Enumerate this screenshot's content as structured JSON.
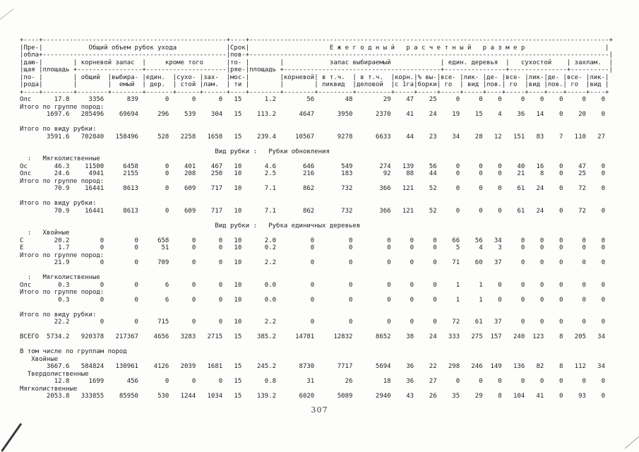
{
  "page": {
    "number": "307"
  },
  "table": {
    "header_lines": [
      "+----+------------------------------------------------+----+----------------------------------------------------------------------------------------------+",
      "|Пре-|            Общий объем рубок ухода             |Срок|                     Е ж е г о д н ы й   р а с ч е т н ы й   р а з м е р                     |",
      "|обла+------------------------------------------------|пов-+----------------------------------------------------------------------------------------------|",
      "|даю-|        | корневой запас  |     кроме того      |то- |        |            запас выбираемый             | един. деревья  |   сухостой    | захлам.  |",
      "|щая |площадь +-----------------+---------------------|ряе-|площадь +-----------------------------------------+----------------+---------------+----------|",
      "|по- |        | общий  |выбира- |един.  |сухо- |зах-  |мос-|        |корневой| в т.ч.  | в т.ч.  |корн.|% вы-|все- |лик- |де- |все- |лик-|де- |все- |лик-|",
      "|рода|        |        |  емый  | дер.  | стой |лам.  | ти |        |        | ликвид  |деловой  |с 1га|борки| го  | вид |лов.| го  |вид |лов.| го  |вид |",
      "+----+--------+--------+--------+-------+------+------+----+--------+--------+---------+---------+-----+-----+-----+-----+----+-----+----+----+-----+----+"
    ],
    "body_lines": [
      {
        "type": "row",
        "name": "Олс",
        "values": [
          "17.8",
          "3356",
          "839",
          "0",
          "0",
          "0",
          "15",
          "1.2",
          "56",
          "48",
          "29",
          "47",
          "25",
          "0",
          "0",
          "0",
          "0",
          "0",
          "0",
          "0",
          "0"
        ]
      },
      {
        "type": "label",
        "col": 0,
        "text": "Итого по группе пород:"
      },
      {
        "type": "values",
        "values": [
          "1697.6",
          "285496",
          "69694",
          "296",
          "539",
          "304",
          "15",
          "113.2",
          "4647",
          "3950",
          "2370",
          "41",
          "24",
          "19",
          "15",
          "4",
          "36",
          "14",
          "0",
          "20",
          "0"
        ]
      },
      {
        "type": "blank"
      },
      {
        "type": "label",
        "col": 0,
        "text": "Итого по виду рубки:"
      },
      {
        "type": "values",
        "values": [
          "3591.6",
          "702840",
          "158496",
          "528",
          "2258",
          "1658",
          "15",
          "239.4",
          "10567",
          "9278",
          "6633",
          "44",
          "23",
          "34",
          "28",
          "12",
          "151",
          "83",
          "7",
          "110",
          "27"
        ]
      },
      {
        "type": "blank"
      },
      {
        "type": "caption",
        "text": "Вид рубки :",
        "value": "Рубки обновления"
      },
      {
        "type": "label",
        "col": 2,
        "text": ":   Мягколиственные"
      },
      {
        "type": "row",
        "name": "Ос",
        "values": [
          "46.3",
          "11500",
          "6458",
          "0",
          "401",
          "467",
          "10",
          "4.6",
          "646",
          "549",
          "274",
          "139",
          "56",
          "0",
          "0",
          "0",
          "40",
          "16",
          "0",
          "47",
          "0"
        ]
      },
      {
        "type": "row",
        "name": "Олс",
        "values": [
          "24.6",
          "4941",
          "2155",
          "0",
          "208",
          "250",
          "10",
          "2.5",
          "216",
          "183",
          "92",
          "88",
          "44",
          "0",
          "0",
          "0",
          "21",
          "8",
          "0",
          "25",
          "0"
        ]
      },
      {
        "type": "label",
        "col": 0,
        "text": "Итого по группе пород:"
      },
      {
        "type": "values",
        "values": [
          "70.9",
          "16441",
          "8613",
          "0",
          "609",
          "717",
          "10",
          "7.1",
          "862",
          "732",
          "366",
          "121",
          "52",
          "0",
          "0",
          "0",
          "61",
          "24",
          "0",
          "72",
          "0"
        ]
      },
      {
        "type": "blank"
      },
      {
        "type": "label",
        "col": 0,
        "text": "Итого по виду рубки:"
      },
      {
        "type": "values",
        "values": [
          "70.9",
          "16441",
          "8613",
          "0",
          "609",
          "717",
          "10",
          "7.1",
          "862",
          "732",
          "366",
          "121",
          "52",
          "0",
          "0",
          "0",
          "61",
          "24",
          "0",
          "72",
          "0"
        ]
      },
      {
        "type": "blank"
      },
      {
        "type": "caption",
        "text": "Вид рубки :",
        "value": "Рубка единичных деревьев"
      },
      {
        "type": "label",
        "col": 2,
        "text": ":   Хвойные"
      },
      {
        "type": "row",
        "name": "С",
        "values": [
          "20.2",
          "0",
          "0",
          "658",
          "0",
          "0",
          "10",
          "2.0",
          "0",
          "0",
          "0",
          "0",
          "0",
          "66",
          "56",
          "34",
          "0",
          "0",
          "0",
          "0",
          "0"
        ]
      },
      {
        "type": "row",
        "name": "Е",
        "values": [
          "1.7",
          "0",
          "0",
          "51",
          "0",
          "0",
          "10",
          "0.2",
          "0",
          "0",
          "0",
          "0",
          "0",
          "5",
          "4",
          "3",
          "0",
          "0",
          "0",
          "0",
          "0"
        ]
      },
      {
        "type": "label",
        "col": 0,
        "text": "Итого по группе пород:"
      },
      {
        "type": "values",
        "values": [
          "21.9",
          "0",
          "0",
          "709",
          "0",
          "0",
          "10",
          "2.2",
          "0",
          "0",
          "0",
          "0",
          "0",
          "71",
          "60",
          "37",
          "0",
          "0",
          "0",
          "0",
          "0"
        ]
      },
      {
        "type": "blank"
      },
      {
        "type": "label",
        "col": 2,
        "text": ":   Мягколиственные"
      },
      {
        "type": "row",
        "name": "Олс",
        "values": [
          "0.3",
          "0",
          "0",
          "6",
          "0",
          "0",
          "10",
          "0.0",
          "0",
          "0",
          "0",
          "0",
          "0",
          "1",
          "1",
          "0",
          "0",
          "0",
          "0",
          "0",
          "0"
        ]
      },
      {
        "type": "label",
        "col": 0,
        "text": "Итого по группе пород:"
      },
      {
        "type": "values",
        "values": [
          "0.3",
          "0",
          "0",
          "6",
          "0",
          "0",
          "10",
          "0.0",
          "0",
          "0",
          "0",
          "0",
          "0",
          "1",
          "1",
          "0",
          "0",
          "0",
          "0",
          "0",
          "0"
        ]
      },
      {
        "type": "blank"
      },
      {
        "type": "label",
        "col": 0,
        "text": "Итого по виду рубки:"
      },
      {
        "type": "values",
        "values": [
          "22.2",
          "0",
          "0",
          "715",
          "0",
          "0",
          "10",
          "2.2",
          "0",
          "0",
          "0",
          "0",
          "0",
          "72",
          "61",
          "37",
          "0",
          "0",
          "0",
          "0",
          "0"
        ]
      },
      {
        "type": "blank"
      },
      {
        "type": "row",
        "name": "ВСЕГО",
        "values": [
          "5734.2",
          "920378",
          "217367",
          "4656",
          "3283",
          "2715",
          "15",
          "385.2",
          "14781",
          "12832",
          "8652",
          "38",
          "24",
          "333",
          "275",
          "157",
          "240",
          "123",
          "8",
          "205",
          "34"
        ]
      },
      {
        "type": "blank"
      },
      {
        "type": "label",
        "col": 0,
        "text": "В том числе по группам пород"
      },
      {
        "type": "label",
        "col": 3,
        "text": "Хвойные"
      },
      {
        "type": "values",
        "values": [
          "3667.6",
          "584824",
          "130961",
          "4126",
          "2039",
          "1681",
          "15",
          "245.2",
          "8730",
          "7717",
          "5694",
          "36",
          "22",
          "298",
          "246",
          "149",
          "136",
          "82",
          "8",
          "112",
          "34"
        ]
      },
      {
        "type": "label",
        "col": 2,
        "text": "Твердолиственные"
      },
      {
        "type": "values",
        "values": [
          "12.8",
          "1699",
          "456",
          "0",
          "0",
          "0",
          "15",
          "0.8",
          "31",
          "26",
          "18",
          "36",
          "27",
          "0",
          "0",
          "0",
          "0",
          "0",
          "0",
          "0",
          "0"
        ]
      },
      {
        "type": "label",
        "col": 0,
        "text": "Мягколиственные"
      },
      {
        "type": "values",
        "values": [
          "2053.8",
          "333855",
          "85950",
          "530",
          "1244",
          "1034",
          "15",
          "139.2",
          "6020",
          "5089",
          "2940",
          "43",
          "26",
          "35",
          "29",
          "8",
          "104",
          "41",
          "0",
          "93",
          "0"
        ]
      }
    ]
  }
}
